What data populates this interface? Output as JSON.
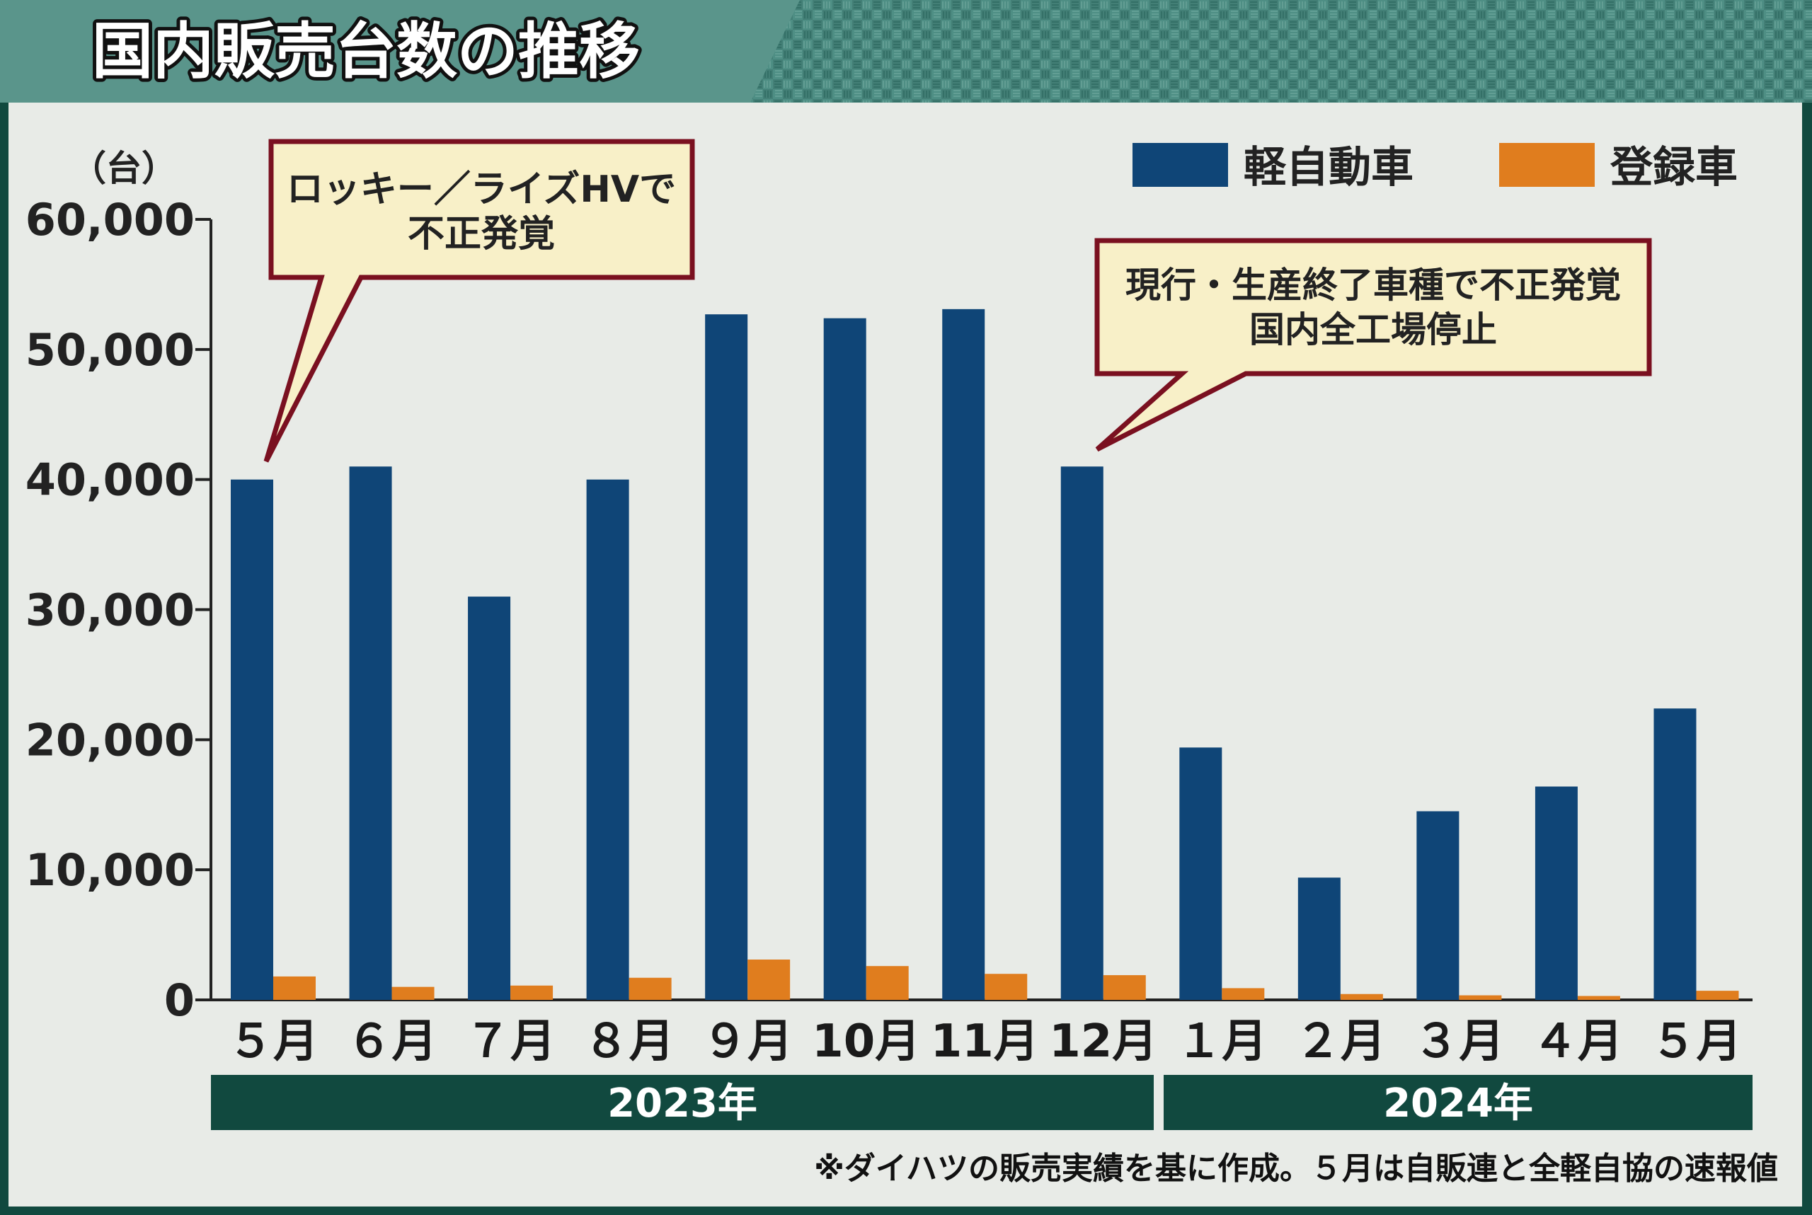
{
  "title": "国内販売台数の推移",
  "colors": {
    "frame": "#11493f",
    "plot_bg": "#e8ebe7",
    "header_bg": "#4e8e84",
    "kei": "#0f4577",
    "registered": "#e07d1e",
    "callout_bg": "#f8f0c8",
    "callout_border": "#7a1020",
    "year_band": "#11493f"
  },
  "legend": {
    "kei": "軽自動車",
    "registered": "登録車"
  },
  "callouts": [
    {
      "lines": [
        "ロッキー／ライズHVで",
        "不正発覚"
      ]
    },
    {
      "lines": [
        "現行・生産終了車種で不正発覚",
        "国内全工場停止"
      ]
    }
  ],
  "years": [
    "2023年",
    "2024年"
  ],
  "note": "※ダイハツの販売実績を基に作成。５月は自販連と全軽自協の速報値",
  "chart_data": {
    "type": "bar",
    "title": "国内販売台数の推移",
    "ylabel": "（台）",
    "ylim": [
      0,
      60000
    ],
    "yticks": [
      0,
      10000,
      20000,
      30000,
      40000,
      50000,
      60000
    ],
    "ytick_labels": [
      "0",
      "10,000",
      "20,000",
      "30,000",
      "40,000",
      "50,000",
      "60,000"
    ],
    "categories": [
      "５月",
      "６月",
      "７月",
      "８月",
      "９月",
      "10月",
      "11月",
      "12月",
      "１月",
      "２月",
      "３月",
      "４月",
      "５月"
    ],
    "series": [
      {
        "name": "軽自動車",
        "color": "#0f4577",
        "values": [
          40000,
          41000,
          31000,
          40000,
          52700,
          52400,
          53100,
          41000,
          19400,
          9400,
          14500,
          16400,
          22400
        ]
      },
      {
        "name": "登録車",
        "color": "#e07d1e",
        "values": [
          1800,
          1000,
          1100,
          1700,
          3100,
          2600,
          2000,
          1900,
          900,
          450,
          350,
          300,
          700
        ]
      }
    ],
    "legend_position": "top-right",
    "grid": false
  }
}
